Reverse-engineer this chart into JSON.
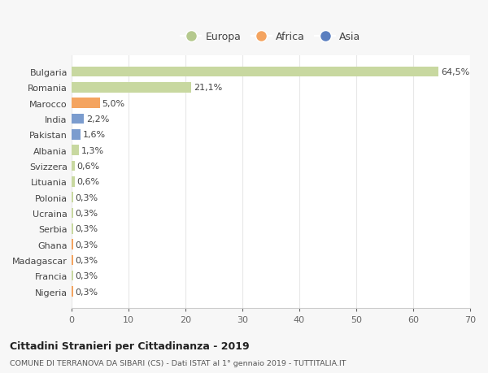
{
  "categories": [
    "Nigeria",
    "Francia",
    "Madagascar",
    "Ghana",
    "Serbia",
    "Ucraina",
    "Polonia",
    "Lituania",
    "Svizzera",
    "Albania",
    "Pakistan",
    "India",
    "Marocco",
    "Romania",
    "Bulgaria"
  ],
  "values": [
    0.3,
    0.3,
    0.3,
    0.3,
    0.3,
    0.3,
    0.3,
    0.6,
    0.6,
    1.3,
    1.6,
    2.2,
    5.0,
    21.1,
    64.5
  ],
  "labels": [
    "0,3%",
    "0,3%",
    "0,3%",
    "0,3%",
    "0,3%",
    "0,3%",
    "0,3%",
    "0,6%",
    "0,6%",
    "1,3%",
    "1,6%",
    "2,2%",
    "5,0%",
    "21,1%",
    "64,5%"
  ],
  "colors": [
    "#f4a460",
    "#c8d8a0",
    "#f4a460",
    "#f4a460",
    "#c8d8a0",
    "#c8d8a0",
    "#c8d8a0",
    "#c8d8a0",
    "#c8d8a0",
    "#c8d8a0",
    "#7b9cce",
    "#7b9cce",
    "#f4a460",
    "#c8d8a0",
    "#c8d8a0"
  ],
  "continent": [
    "Africa",
    "Europa",
    "Africa",
    "Africa",
    "Europa",
    "Europa",
    "Europa",
    "Europa",
    "Europa",
    "Europa",
    "Asia",
    "Asia",
    "Africa",
    "Europa",
    "Europa"
  ],
  "europa_color": "#b5c98e",
  "africa_color": "#f4a460",
  "asia_color": "#5b7fc0",
  "bg_color": "#f7f7f7",
  "plot_bg_color": "#ffffff",
  "title1": "Cittadini Stranieri per Cittadinanza - 2019",
  "title2": "COMUNE DI TERRANOVA DA SIBARI (CS) - Dati ISTAT al 1° gennaio 2019 - TUTTITALIA.IT",
  "xlim": [
    0,
    70
  ],
  "xticks": [
    0,
    10,
    20,
    30,
    40,
    50,
    60,
    70
  ],
  "grid_color": "#e8e8e8",
  "label_fontsize": 8,
  "tick_fontsize": 8,
  "legend_fontsize": 9,
  "bar_height": 0.65
}
